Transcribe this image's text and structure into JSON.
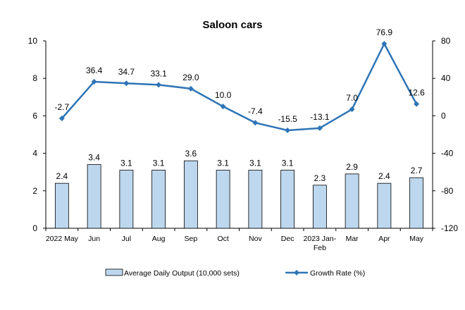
{
  "chart_data": {
    "type": "bar+line",
    "title": "Saloon cars",
    "categories": [
      "2022 May",
      "Jun",
      "Jul",
      "Aug",
      "Sep",
      "Oct",
      "Nov",
      "Dec",
      "2023 Jan-Feb",
      "Mar",
      "Apr",
      "May"
    ],
    "category_lines": [
      [
        "2022 May"
      ],
      [
        "Jun"
      ],
      [
        "Jul"
      ],
      [
        "Aug"
      ],
      [
        "Sep"
      ],
      [
        "Oct"
      ],
      [
        "Nov"
      ],
      [
        "Dec"
      ],
      [
        "2023 Jan-",
        "Feb"
      ],
      [
        "Mar"
      ],
      [
        "Apr"
      ],
      [
        "May"
      ]
    ],
    "series": [
      {
        "name": "Average Daily Output (10,000 sets)",
        "type": "bar",
        "axis": "left",
        "values": [
          2.4,
          3.4,
          3.1,
          3.1,
          3.6,
          3.1,
          3.1,
          3.1,
          2.3,
          2.9,
          2.4,
          2.7
        ],
        "color": "#bdd7ee",
        "stroke": "#000000"
      },
      {
        "name": "Growth Rate (%)",
        "type": "line",
        "axis": "right",
        "values": [
          -2.7,
          36.4,
          34.7,
          33.1,
          29.0,
          10.0,
          -7.4,
          -15.5,
          -13.1,
          7.0,
          76.9,
          12.6
        ],
        "labels": [
          "-2.7",
          "36.4",
          "34.7",
          "33.1",
          "29.0",
          "10.0",
          "-7.4",
          "-15.5",
          "-13.1",
          "7.0",
          "76.9",
          "12.6"
        ],
        "color": "#2e75b6"
      }
    ],
    "bar_labels": [
      "2.4",
      "3.4",
      "3.1",
      "3.1",
      "3.6",
      "3.1",
      "3.1",
      "3.1",
      "2.3",
      "2.9",
      "2.4",
      "2.7"
    ],
    "y_left": {
      "min": 0,
      "max": 10,
      "ticks": [
        0,
        2,
        4,
        6,
        8,
        10
      ]
    },
    "y_right": {
      "min": -120,
      "max": 80,
      "ticks": [
        -120,
        -80,
        -40,
        0,
        40,
        80
      ]
    },
    "legend_position": "bottom",
    "grid": false
  }
}
